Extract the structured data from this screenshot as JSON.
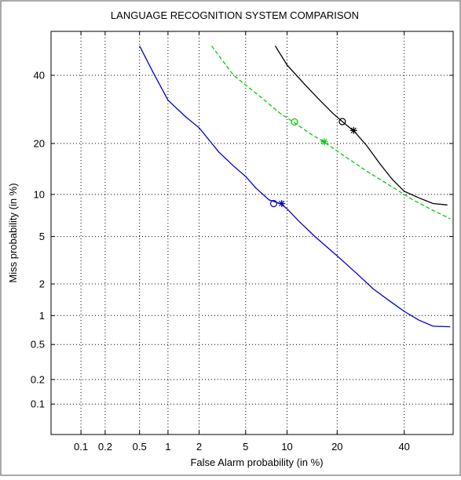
{
  "chart_data": {
    "type": "line",
    "title": "LANGUAGE RECOGNITION SYSTEM COMPARISON",
    "xlabel": "False Alarm probability (in %)",
    "ylabel": "Miss probability (in %)",
    "scale": "normal-deviate (probit) on both axes",
    "xlim": [
      0.04,
      57
    ],
    "ylim": [
      0.04,
      55
    ],
    "x_ticks": [
      0.1,
      0.2,
      0.5,
      1,
      2,
      5,
      10,
      20,
      40
    ],
    "x_tick_labels": [
      "0.1",
      "0.2",
      "0.5",
      "1",
      "2",
      "5",
      "10",
      "20",
      "40"
    ],
    "y_ticks": [
      0.1,
      0.2,
      0.5,
      1,
      2,
      5,
      10,
      20,
      40
    ],
    "y_tick_labels": [
      "0.1",
      "0.2",
      "0.5",
      "1",
      "2",
      "5",
      "10",
      "20",
      "40"
    ],
    "grid": true,
    "legend": "none",
    "series": [
      {
        "color": "#000000",
        "style": "solid",
        "points": [
          [
            8.3,
            50
          ],
          [
            10,
            43.5
          ],
          [
            13,
            37
          ],
          [
            16,
            32
          ],
          [
            19,
            28
          ],
          [
            21.5,
            25.5
          ],
          [
            24.5,
            23
          ],
          [
            28,
            19.5
          ],
          [
            32,
            15.5
          ],
          [
            36,
            12.5
          ],
          [
            40,
            10.5
          ],
          [
            45,
            9.5
          ],
          [
            50,
            8.7
          ],
          [
            55,
            8.5
          ]
        ],
        "markers": [
          {
            "symbol": "o",
            "x": 21.3,
            "y": 25.7
          },
          {
            "symbol": "*",
            "x": 24.3,
            "y": 23.3
          }
        ]
      },
      {
        "color": "#00cc00",
        "style": "dashed",
        "points": [
          [
            2.6,
            50
          ],
          [
            4,
            40
          ],
          [
            6.5,
            33
          ],
          [
            9,
            28
          ],
          [
            11,
            25.6
          ],
          [
            14,
            22.5
          ],
          [
            17,
            20.3
          ],
          [
            22,
            17
          ],
          [
            28,
            14
          ],
          [
            35,
            11.5
          ],
          [
            43,
            9.2
          ],
          [
            50,
            7.8
          ],
          [
            56,
            6.8
          ]
        ],
        "markers": [
          {
            "symbol": "o",
            "x": 11.2,
            "y": 25.6
          },
          {
            "symbol": "*",
            "x": 17,
            "y": 20.4
          }
        ]
      },
      {
        "color": "#0000cc",
        "style": "solid",
        "points": [
          [
            0.5,
            50
          ],
          [
            0.7,
            41
          ],
          [
            1,
            32
          ],
          [
            1.5,
            27
          ],
          [
            2,
            24
          ],
          [
            3,
            18
          ],
          [
            4,
            15
          ],
          [
            5,
            13
          ],
          [
            6,
            11
          ],
          [
            7.5,
            9.2
          ],
          [
            9,
            8.7
          ],
          [
            10,
            8
          ],
          [
            12,
            6.5
          ],
          [
            15,
            5
          ],
          [
            20,
            3.5
          ],
          [
            25,
            2.5
          ],
          [
            30,
            1.8
          ],
          [
            35,
            1.4
          ],
          [
            40,
            1.1
          ],
          [
            45,
            0.9
          ],
          [
            50,
            0.78
          ],
          [
            56,
            0.77
          ]
        ],
        "markers": [
          {
            "symbol": "o",
            "x": 8.1,
            "y": 8.7
          },
          {
            "symbol": "*",
            "x": 9.2,
            "y": 8.7
          }
        ]
      }
    ]
  }
}
